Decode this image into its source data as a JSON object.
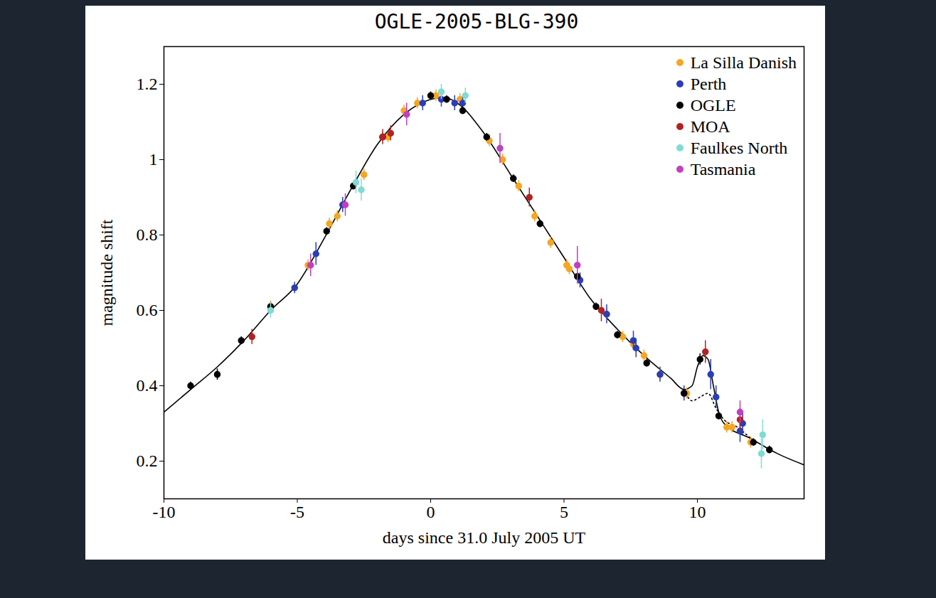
{
  "chart_data": {
    "type": "scatter",
    "title": "OGLE-2005-BLG-390",
    "x_label": "days since 31.0 July 2005 UT",
    "y_label": "magnitude shift",
    "xlim": [
      -10,
      14
    ],
    "xticks": [
      -10,
      -5,
      0,
      5,
      10
    ],
    "ylim": [
      0.1,
      1.3
    ],
    "yticks": [
      0.2,
      0.4,
      0.6,
      0.8,
      1,
      1.2
    ],
    "legend": "top-right",
    "series": [
      {
        "type": "line",
        "color": "#000000",
        "line_style": "solid",
        "x": [
          -10,
          -9,
          -8,
          -7,
          -6,
          -5,
          -4,
          -3,
          -2,
          -1,
          0,
          0.5,
          1,
          2,
          3,
          4,
          5,
          6,
          7,
          8,
          9,
          9.5,
          9.8,
          10,
          10.2,
          10.4,
          10.6,
          10.8,
          11,
          12,
          13,
          14
        ],
        "values": [
          0.33,
          0.39,
          0.45,
          0.52,
          0.6,
          0.67,
          0.79,
          0.92,
          1.04,
          1.12,
          1.16,
          1.165,
          1.15,
          1.07,
          0.96,
          0.85,
          0.74,
          0.63,
          0.55,
          0.48,
          0.42,
          0.39,
          0.4,
          0.45,
          0.48,
          0.47,
          0.4,
          0.33,
          0.3,
          0.26,
          0.22,
          0.19
        ]
      },
      {
        "type": "line",
        "color": "#000000",
        "line_style": "dotted",
        "x": [
          9.5,
          9.8,
          10.1,
          10.4,
          10.7,
          11,
          11.5,
          12
        ],
        "values": [
          0.39,
          0.36,
          0.37,
          0.38,
          0.34,
          0.31,
          0.29,
          0.26
        ]
      },
      {
        "name": "La Silla Danish",
        "color": "#f5a623",
        "marker": "circle",
        "x": [
          -6,
          -4.6,
          -3.8,
          -3.5,
          -2.5,
          -1.6,
          -1,
          -0.5,
          0.2,
          1.1,
          2.2,
          2.7,
          3.3,
          3.9,
          4.5,
          5.1,
          5.2,
          6.6,
          7.2,
          7.6,
          8,
          8.6,
          9.6,
          11.1,
          11.3,
          12
        ],
        "values": [
          0.61,
          0.72,
          0.83,
          0.85,
          0.96,
          1.06,
          1.13,
          1.15,
          1.17,
          1.16,
          1.05,
          1,
          0.93,
          0.85,
          0.78,
          0.72,
          0.71,
          0.59,
          0.53,
          0.51,
          0.48,
          0.43,
          0.38,
          0.29,
          0.29,
          0.25
        ],
        "errors": [
          0.015,
          0.015,
          0.015,
          0.015,
          0.015,
          0.015,
          0.015,
          0.015,
          0.015,
          0.015,
          0.015,
          0.015,
          0.015,
          0.015,
          0.015,
          0.015,
          0.015,
          0.015,
          0.015,
          0.015,
          0.015,
          0.015,
          0.015,
          0.015,
          0.015,
          0.015
        ]
      },
      {
        "name": "Perth",
        "color": "#2a3fb5",
        "marker": "circle",
        "x": [
          -5.1,
          -4.3,
          -3.3,
          -0.3,
          0.4,
          0.9,
          1.2,
          5.6,
          6.6,
          7.6,
          7.7,
          8.6,
          9.5,
          10.5,
          10.7,
          11.6,
          11.7
        ],
        "values": [
          0.66,
          0.75,
          0.88,
          1.15,
          1.16,
          1.15,
          1.15,
          0.68,
          0.59,
          0.52,
          0.5,
          0.43,
          0.38,
          0.43,
          0.37,
          0.28,
          0.3
        ],
        "errors": [
          0.015,
          0.03,
          0.02,
          0.02,
          0.02,
          0.02,
          0.02,
          0.02,
          0.025,
          0.025,
          0.025,
          0.02,
          0.02,
          0.04,
          0.03,
          0.03,
          0.03
        ]
      },
      {
        "name": "OGLE",
        "color": "#000000",
        "marker": "circle",
        "x": [
          -9,
          -8,
          -7.1,
          -6,
          -3.9,
          -2.9,
          -1.8,
          0,
          0.6,
          1.2,
          2.1,
          3.1,
          4.1,
          5.5,
          6.2,
          7,
          8.1,
          9.5,
          10.1,
          10.8,
          12.1,
          12.7
        ],
        "values": [
          0.4,
          0.43,
          0.52,
          0.61,
          0.81,
          0.93,
          1.06,
          1.17,
          1.16,
          1.13,
          1.06,
          0.95,
          0.83,
          0.69,
          0.61,
          0.535,
          0.46,
          0.38,
          0.47,
          0.32,
          0.25,
          0.23
        ],
        "errors": [
          0.01,
          0.015,
          0.01,
          0.01,
          0.01,
          0.01,
          0.01,
          0.01,
          0.01,
          0.01,
          0.01,
          0.01,
          0.01,
          0.01,
          0.01,
          0.01,
          0.01,
          0.01,
          0.015,
          0.01,
          0.01,
          0.01
        ]
      },
      {
        "name": "MOA",
        "color": "#b22222",
        "marker": "circle",
        "x": [
          -6.7,
          -1.8,
          -1.5,
          3.7,
          6.4,
          10.3,
          11.6
        ],
        "values": [
          0.53,
          1.06,
          1.07,
          0.9,
          0.6,
          0.49,
          0.31
        ],
        "errors": [
          0.02,
          0.02,
          0.02,
          0.025,
          0.03,
          0.03,
          0.03
        ]
      },
      {
        "name": "Faulkes North",
        "color": "#7fdbd4",
        "marker": "circle",
        "x": [
          -6,
          -2.8,
          -2.6,
          0.4,
          1.3,
          12.4,
          12.45
        ],
        "values": [
          0.6,
          0.94,
          0.92,
          1.18,
          1.17,
          0.22,
          0.27
        ],
        "errors": [
          0.02,
          0.03,
          0.03,
          0.02,
          0.02,
          0.04,
          0.04
        ]
      },
      {
        "name": "Tasmania",
        "color": "#c040c0",
        "marker": "circle",
        "x": [
          -4.5,
          -3.2,
          -0.9,
          2.6,
          5.5,
          11.6
        ],
        "values": [
          0.72,
          0.88,
          1.12,
          1.03,
          0.72,
          0.33
        ],
        "errors": [
          0.03,
          0.03,
          0.03,
          0.04,
          0.05,
          0.03
        ]
      }
    ]
  }
}
